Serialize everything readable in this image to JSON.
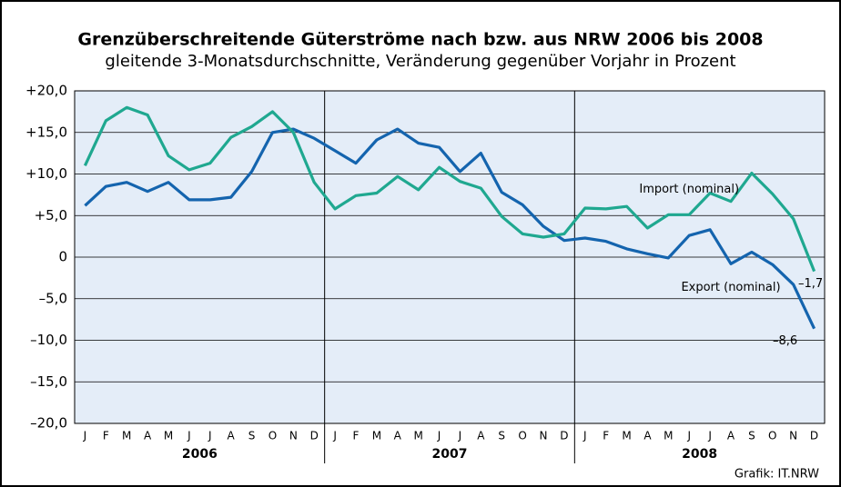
{
  "chart_data": {
    "type": "line",
    "title": "Grenzüberschreitende Güterströme nach bzw. aus NRW 2006 bis 2008",
    "subtitle": "gleitende 3-Monatsdurchschnitte, Veränderung gegenüber Vorjahr in Prozent",
    "categories": [
      "J",
      "F",
      "M",
      "A",
      "M",
      "J",
      "J",
      "A",
      "S",
      "O",
      "N",
      "D",
      "J",
      "F",
      "M",
      "A",
      "M",
      "J",
      "J",
      "A",
      "S",
      "O",
      "N",
      "D",
      "J",
      "F",
      "M",
      "A",
      "M",
      "J",
      "J",
      "A",
      "S",
      "O",
      "N",
      "D"
    ],
    "years": [
      "2006",
      "2007",
      "2008"
    ],
    "series": [
      {
        "name": "Export (nominal)",
        "color": "#1464ae",
        "values": [
          6.2,
          8.5,
          9.0,
          7.9,
          9.0,
          6.9,
          6.9,
          7.2,
          10.3,
          15.0,
          15.4,
          14.3,
          12.8,
          11.3,
          14.1,
          15.4,
          13.7,
          13.2,
          10.3,
          12.5,
          7.8,
          6.3,
          3.7,
          2.0,
          2.3,
          1.9,
          1.0,
          0.4,
          -0.1,
          2.6,
          3.3,
          -0.8,
          0.6,
          -0.9,
          -3.3,
          -8.6
        ],
        "value_labels": [
          null,
          null,
          null,
          null,
          null,
          null,
          null,
          null,
          null,
          null,
          null,
          null,
          null,
          null,
          null,
          null,
          null,
          null,
          null,
          null,
          null,
          null,
          null,
          null,
          null,
          null,
          null,
          null,
          null,
          null,
          null,
          null,
          null,
          null,
          null,
          "–8,6"
        ]
      },
      {
        "name": "Import (nominal)",
        "color": "#1fa890",
        "values": [
          11.0,
          16.4,
          18.0,
          17.1,
          12.2,
          10.5,
          11.3,
          14.4,
          15.7,
          17.5,
          15.0,
          9.0,
          5.8,
          7.4,
          7.7,
          9.7,
          8.1,
          10.8,
          9.1,
          8.3,
          4.9,
          2.8,
          2.4,
          2.8,
          5.9,
          5.8,
          6.1,
          3.5,
          5.1,
          5.1,
          7.7,
          6.7,
          10.1,
          7.6,
          4.6,
          -1.7
        ],
        "value_labels": [
          null,
          null,
          null,
          null,
          null,
          null,
          null,
          null,
          null,
          null,
          null,
          null,
          null,
          null,
          null,
          null,
          null,
          null,
          null,
          null,
          null,
          null,
          null,
          null,
          null,
          null,
          null,
          null,
          null,
          null,
          null,
          null,
          null,
          null,
          null,
          "–1,7"
        ]
      }
    ],
    "ylim": [
      -20,
      20
    ],
    "yticks": [
      {
        "value": -20,
        "label": "–20,0"
      },
      {
        "value": -15,
        "label": "–15,0"
      },
      {
        "value": -10,
        "label": "–10,0"
      },
      {
        "value": -5,
        "label": "–5,0"
      },
      0,
      {
        "value": 5,
        "label": "+5,0"
      },
      {
        "value": 10,
        "label": "+10,0"
      },
      {
        "value": 15,
        "label": "+15,0"
      },
      {
        "value": 20,
        "label": "+20,0"
      }
    ],
    "grid": true,
    "source": "Grafik: IT.NRW"
  }
}
